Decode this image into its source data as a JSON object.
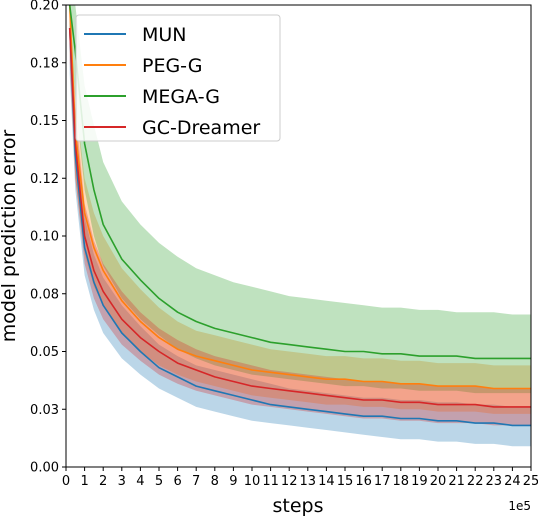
{
  "chart_data": {
    "type": "line",
    "xlabel": "steps",
    "ylabel": "model prediction error",
    "x_multiplier_label": "1e5",
    "xlim": [
      0,
      25
    ],
    "ylim": [
      0.0,
      0.2
    ],
    "x_ticks": [
      0,
      1,
      2,
      3,
      4,
      5,
      6,
      7,
      8,
      9,
      10,
      11,
      12,
      13,
      14,
      15,
      16,
      17,
      18,
      19,
      20,
      21,
      22,
      23,
      24,
      25
    ],
    "x_tick_labels": [
      "0",
      "1",
      "2",
      "3",
      "4",
      "5",
      "6",
      "7",
      "8",
      "9",
      "10",
      "11",
      "12",
      "13",
      "14",
      "15",
      "16",
      "17",
      "18",
      "19",
      "20",
      "21",
      "22",
      "23",
      "24",
      "25"
    ],
    "y_ticks": [
      0.0,
      0.025,
      0.05,
      0.075,
      0.1,
      0.125,
      0.15,
      0.175,
      0.2
    ],
    "y_tick_labels": [
      "0.00",
      "0.03",
      "0.05",
      "0.08",
      "0.10",
      "0.12",
      "0.15",
      "0.18",
      "0.20"
    ],
    "grid": false,
    "legend_position": "top-left",
    "x": [
      0.2,
      0.5,
      1,
      1.5,
      2,
      3,
      4,
      5,
      6,
      7,
      8,
      9,
      10,
      11,
      12,
      13,
      14,
      15,
      16,
      17,
      18,
      19,
      20,
      21,
      22,
      23,
      24,
      25
    ],
    "series": [
      {
        "name": "MUN",
        "color": "#1f77b4",
        "values": [
          0.19,
          0.135,
          0.095,
          0.08,
          0.07,
          0.058,
          0.05,
          0.043,
          0.039,
          0.035,
          0.033,
          0.031,
          0.029,
          0.027,
          0.026,
          0.025,
          0.024,
          0.023,
          0.022,
          0.022,
          0.021,
          0.021,
          0.02,
          0.02,
          0.019,
          0.019,
          0.018,
          0.018
        ],
        "lower": [
          0.17,
          0.12,
          0.083,
          0.068,
          0.058,
          0.047,
          0.04,
          0.034,
          0.03,
          0.026,
          0.024,
          0.022,
          0.02,
          0.019,
          0.018,
          0.017,
          0.016,
          0.015,
          0.014,
          0.013,
          0.012,
          0.012,
          0.011,
          0.011,
          0.01,
          0.01,
          0.009,
          0.009
        ],
        "upper": [
          0.2,
          0.15,
          0.108,
          0.092,
          0.082,
          0.07,
          0.061,
          0.053,
          0.048,
          0.044,
          0.042,
          0.04,
          0.038,
          0.036,
          0.034,
          0.033,
          0.032,
          0.031,
          0.03,
          0.03,
          0.029,
          0.029,
          0.028,
          0.028,
          0.027,
          0.027,
          0.026,
          0.026
        ]
      },
      {
        "name": "PEG-G",
        "color": "#ff7f0e",
        "values": [
          0.2,
          0.145,
          0.11,
          0.095,
          0.085,
          0.072,
          0.063,
          0.056,
          0.051,
          0.048,
          0.046,
          0.044,
          0.042,
          0.041,
          0.04,
          0.039,
          0.038,
          0.038,
          0.037,
          0.037,
          0.036,
          0.036,
          0.035,
          0.035,
          0.035,
          0.034,
          0.034,
          0.034
        ],
        "lower": [
          0.18,
          0.125,
          0.092,
          0.078,
          0.07,
          0.058,
          0.05,
          0.044,
          0.04,
          0.037,
          0.035,
          0.033,
          0.031,
          0.03,
          0.029,
          0.028,
          0.027,
          0.027,
          0.026,
          0.026,
          0.025,
          0.025,
          0.024,
          0.024,
          0.024,
          0.023,
          0.023,
          0.023
        ],
        "upper": [
          0.2,
          0.16,
          0.125,
          0.11,
          0.1,
          0.086,
          0.077,
          0.069,
          0.063,
          0.059,
          0.057,
          0.055,
          0.053,
          0.051,
          0.05,
          0.049,
          0.048,
          0.048,
          0.047,
          0.047,
          0.046,
          0.046,
          0.045,
          0.045,
          0.045,
          0.044,
          0.044,
          0.044
        ]
      },
      {
        "name": "MEGA-G",
        "color": "#2ca02c",
        "values": [
          0.2,
          0.18,
          0.14,
          0.12,
          0.105,
          0.09,
          0.081,
          0.073,
          0.067,
          0.063,
          0.06,
          0.058,
          0.056,
          0.054,
          0.053,
          0.052,
          0.051,
          0.05,
          0.05,
          0.049,
          0.049,
          0.048,
          0.048,
          0.048,
          0.047,
          0.047,
          0.047,
          0.047
        ],
        "lower": [
          0.19,
          0.16,
          0.12,
          0.1,
          0.087,
          0.073,
          0.064,
          0.057,
          0.051,
          0.047,
          0.044,
          0.042,
          0.04,
          0.039,
          0.038,
          0.037,
          0.036,
          0.035,
          0.035,
          0.034,
          0.034,
          0.033,
          0.033,
          0.033,
          0.032,
          0.032,
          0.032,
          0.032
        ],
        "upper": [
          0.2,
          0.2,
          0.165,
          0.148,
          0.132,
          0.115,
          0.105,
          0.097,
          0.091,
          0.086,
          0.083,
          0.08,
          0.078,
          0.076,
          0.074,
          0.073,
          0.072,
          0.071,
          0.07,
          0.069,
          0.069,
          0.068,
          0.068,
          0.067,
          0.067,
          0.067,
          0.066,
          0.066
        ]
      },
      {
        "name": "GC-Dreamer",
        "color": "#d62728",
        "values": [
          0.19,
          0.14,
          0.1,
          0.085,
          0.076,
          0.064,
          0.056,
          0.05,
          0.045,
          0.042,
          0.039,
          0.037,
          0.035,
          0.034,
          0.033,
          0.032,
          0.031,
          0.03,
          0.029,
          0.029,
          0.028,
          0.028,
          0.027,
          0.027,
          0.027,
          0.026,
          0.026,
          0.026
        ],
        "lower": [
          0.175,
          0.125,
          0.088,
          0.073,
          0.064,
          0.053,
          0.046,
          0.04,
          0.036,
          0.033,
          0.031,
          0.029,
          0.027,
          0.026,
          0.025,
          0.024,
          0.023,
          0.022,
          0.021,
          0.021,
          0.02,
          0.02,
          0.019,
          0.019,
          0.019,
          0.018,
          0.018,
          0.018
        ],
        "upper": [
          0.2,
          0.155,
          0.114,
          0.098,
          0.088,
          0.076,
          0.067,
          0.06,
          0.055,
          0.051,
          0.048,
          0.046,
          0.044,
          0.042,
          0.041,
          0.04,
          0.039,
          0.038,
          0.037,
          0.037,
          0.036,
          0.036,
          0.035,
          0.035,
          0.035,
          0.034,
          0.034,
          0.034
        ]
      }
    ]
  }
}
